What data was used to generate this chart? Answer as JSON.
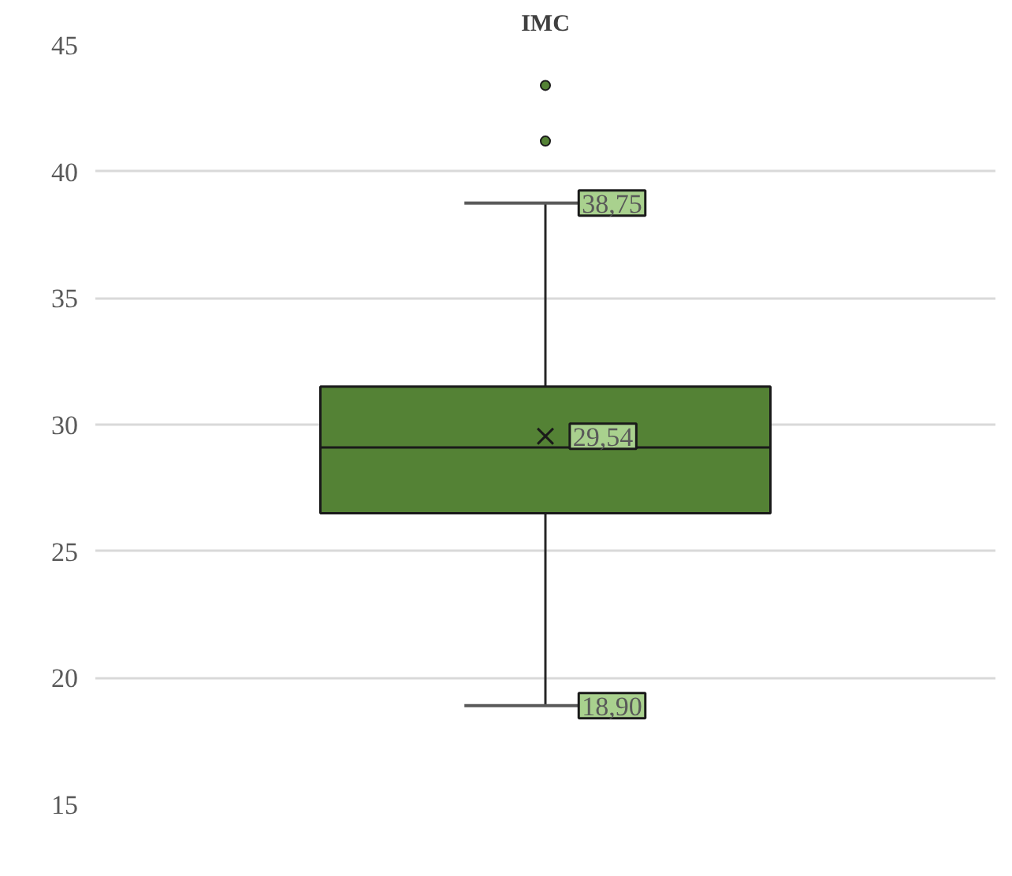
{
  "chart_data": {
    "type": "box",
    "title": "IMC",
    "categories": [
      null
    ],
    "series": [
      {
        "color": "#548235",
        "boxes": [
          {
            "low": 18.9,
            "q1": 26.5,
            "median": 29.1,
            "q3": 31.5,
            "high": 38.75,
            "mean": 29.54,
            "outliers": [
              41.2,
              43.4
            ]
          }
        ]
      }
    ],
    "ylim": [
      15,
      45
    ],
    "yticks": [
      15,
      20,
      25,
      30,
      35,
      40,
      45
    ],
    "grid": "y",
    "annotations": [
      {
        "text": "38,75",
        "y": 38.75
      },
      {
        "text": "29,54",
        "y": 29.54
      },
      {
        "text": "18,90",
        "y": 18.9
      }
    ]
  }
}
